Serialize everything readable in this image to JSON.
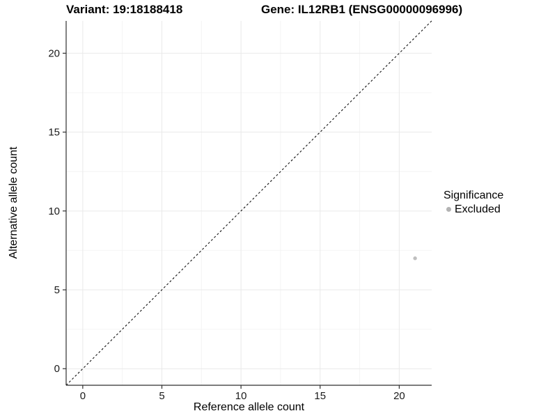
{
  "chart_data": {
    "type": "scatter",
    "titles": [
      "Variant: 19:18188418",
      "Gene: IL12RB1 (ENSG00000096996)"
    ],
    "xlabel": "Reference allele count",
    "ylabel": "Alternative allele count",
    "xlim": [
      -1.05,
      22.05
    ],
    "ylim": [
      -1.05,
      22.05
    ],
    "x_ticks": [
      0,
      5,
      10,
      15,
      20
    ],
    "x_tick_labels": [
      "0",
      "5",
      "10",
      "15",
      "20"
    ],
    "y_ticks": [
      0,
      5,
      10,
      15,
      20
    ],
    "y_tick_labels": [
      "0",
      "5",
      "10",
      "15",
      "20"
    ],
    "x_minor_gridlines": [
      2.5,
      7.5,
      12.5,
      17.5
    ],
    "y_minor_gridlines": [
      2.5,
      7.5,
      12.5,
      17.5
    ],
    "grid": "major and minor gridlines, very light grey, white background",
    "identity_line": {
      "type": "y=x diagonal",
      "style": "dashed",
      "color": "#000000"
    },
    "series": [
      {
        "name": "Excluded",
        "color": "#bfbfbf",
        "points": [
          {
            "x": 21,
            "y": 7
          }
        ]
      }
    ],
    "legend": {
      "title": "Significance",
      "position": "right",
      "entries": [
        {
          "label": "Excluded",
          "color": "#b3b3b3"
        }
      ]
    }
  },
  "colors": {
    "background": "#ffffff",
    "title_text": "#000000",
    "axis_text": "#1a1a1a",
    "axis_line": "#2f2f2f",
    "grid_major": "#e9e9e9",
    "grid_minor": "#f4f4f4",
    "identity_line": "#111111",
    "excluded_point": "#bfbfbf"
  }
}
